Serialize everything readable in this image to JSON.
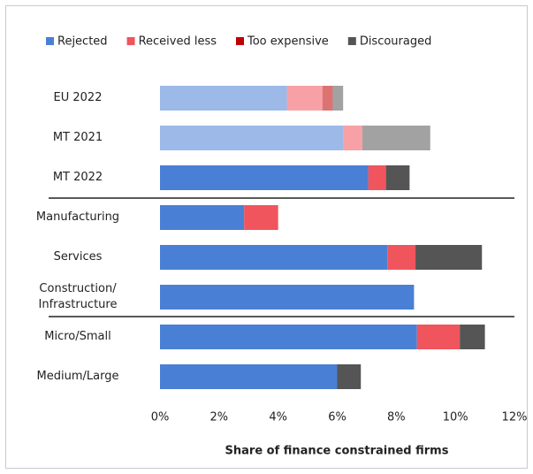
{
  "chart_data": {
    "type": "stacked_barh",
    "categories": [
      "EU 2022",
      "MT 2021",
      "MT 2022",
      "Manufacturing",
      "Services",
      "Construction/\nInfrastructure",
      "Micro/Small",
      "Medium/Large"
    ],
    "series": [
      {
        "name": "Rejected",
        "color": "#4a7fd6",
        "values": [
          4.3,
          6.2,
          7.05,
          2.85,
          7.7,
          8.6,
          8.7,
          6.0
        ]
      },
      {
        "name": "Received less",
        "color": "#f0545c",
        "values": [
          1.2,
          0.65,
          0.6,
          1.15,
          0.95,
          0,
          1.45,
          0
        ]
      },
      {
        "name": "Too expensive",
        "color": "#c00000",
        "values": [
          0.35,
          0,
          0,
          0,
          0,
          0,
          0,
          0
        ]
      },
      {
        "name": "Discouraged",
        "color": "#555555",
        "values": [
          0.35,
          2.3,
          0.8,
          0,
          2.25,
          0,
          0.85,
          0.8
        ]
      }
    ],
    "category_opacity": [
      0.55,
      0.55,
      1,
      1,
      1,
      1,
      1,
      1
    ],
    "xlim": [
      0,
      12
    ],
    "xticks": [
      {
        "value": 0,
        "label": "0%"
      },
      {
        "value": 2,
        "label": "2%"
      },
      {
        "value": 4,
        "label": "4%"
      },
      {
        "value": 6,
        "label": "6%"
      },
      {
        "value": 8,
        "label": "8%"
      },
      {
        "value": 10,
        "label": "10%"
      },
      {
        "value": 12,
        "label": "12%"
      }
    ],
    "xlabel": "Share of finance constrained firms",
    "legend": "top"
  }
}
